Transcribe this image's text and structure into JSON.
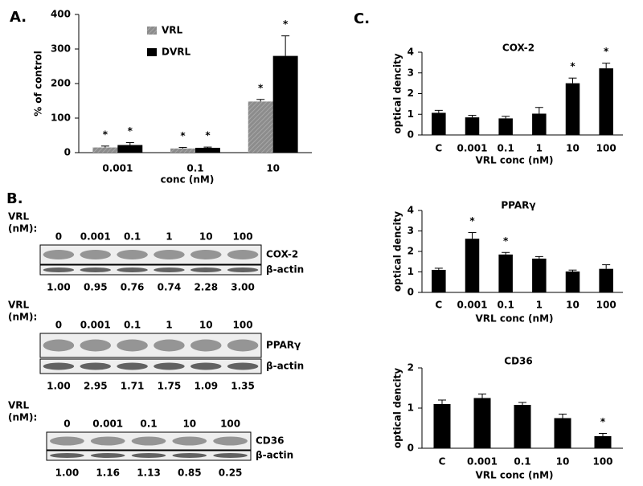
{
  "panel_labels": [
    "A.",
    "B.",
    "C."
  ],
  "chart_data": [
    {
      "type": "bar",
      "categories": [
        "0.001",
        "0.1",
        "10"
      ],
      "xlabel": "conc (nM)",
      "ylabel": "% of control",
      "ylim": [
        0,
        400
      ],
      "yticks": [
        0,
        100,
        200,
        300,
        400
      ],
      "legend": "top-left",
      "series": [
        {
          "name": "VRL",
          "color": "#8c8c8c",
          "values": [
            15,
            12,
            148
          ],
          "errors": [
            4,
            3,
            6
          ],
          "annotations": [
            "*",
            "*",
            "*"
          ]
        },
        {
          "name": "DVRL",
          "color": "#000000",
          "values": [
            22,
            14,
            280
          ],
          "errors": [
            7,
            2,
            58
          ],
          "annotations": [
            "*",
            "*",
            "*"
          ]
        }
      ]
    },
    {
      "type": "bar",
      "title": "COX-2",
      "categories": [
        "C",
        "0.001",
        "0.1",
        "1",
        "10",
        "100"
      ],
      "xlabel": "VRL conc (nM)",
      "ylabel": "optical dencity",
      "ylim": [
        0,
        4
      ],
      "yticks": [
        0,
        1,
        2,
        3,
        4
      ],
      "color": "#000000",
      "values": [
        1.07,
        0.85,
        0.8,
        1.03,
        2.5,
        3.22
      ],
      "errors": [
        0.12,
        0.1,
        0.1,
        0.3,
        0.25,
        0.25
      ],
      "annotations": [
        null,
        null,
        null,
        null,
        "*",
        "*"
      ]
    },
    {
      "type": "bar",
      "title": "PPARγ",
      "categories": [
        "C",
        "0.001",
        "0.1",
        "1",
        "10",
        "100"
      ],
      "xlabel": "VRL conc (nM)",
      "ylabel": "optical dencity",
      "ylim": [
        0,
        4
      ],
      "yticks": [
        0,
        1,
        2,
        3,
        4
      ],
      "color": "#000000",
      "values": [
        1.1,
        2.62,
        1.85,
        1.65,
        1.02,
        1.15
      ],
      "errors": [
        0.08,
        0.3,
        0.1,
        0.1,
        0.07,
        0.2
      ],
      "annotations": [
        null,
        "*",
        "*",
        null,
        null,
        null
      ]
    },
    {
      "type": "bar",
      "title": "CD36",
      "categories": [
        "C",
        "0.001",
        "0.1",
        "10",
        "100"
      ],
      "xlabel": "VRL conc (nM)",
      "ylabel": "optical dencity",
      "ylim": [
        0,
        2
      ],
      "yticks": [
        0,
        1,
        2
      ],
      "color": "#000000",
      "values": [
        1.1,
        1.25,
        1.08,
        0.75,
        0.3
      ],
      "errors": [
        0.1,
        0.1,
        0.06,
        0.1,
        0.07
      ],
      "annotations": [
        null,
        null,
        null,
        null,
        "*"
      ]
    }
  ],
  "blots": [
    {
      "header": [
        "VRL",
        "(nM):"
      ],
      "lanes": [
        "0",
        "0.001",
        "0.1",
        "1",
        "10",
        "100"
      ],
      "bands": [
        "COX-2",
        "β-actin"
      ],
      "quantities": [
        "1.00",
        "0.95",
        "0.76",
        "0.74",
        "2.28",
        "3.00"
      ]
    },
    {
      "header": [
        "VRL",
        "(nM):"
      ],
      "lanes": [
        "0",
        "0.001",
        "0.1",
        "1",
        "10",
        "100"
      ],
      "bands": [
        "PPARγ",
        "β-actin"
      ],
      "quantities": [
        "1.00",
        "2.95",
        "1.71",
        "1.75",
        "1.09",
        "1.35"
      ]
    },
    {
      "header": [
        "VRL",
        "(nM):"
      ],
      "lanes": [
        "0",
        "0.001",
        "0.1",
        "10",
        "100"
      ],
      "bands": [
        "CD36",
        "β-actin"
      ],
      "quantities": [
        "1.00",
        "1.16",
        "1.13",
        "0.85",
        "0.25"
      ]
    }
  ]
}
